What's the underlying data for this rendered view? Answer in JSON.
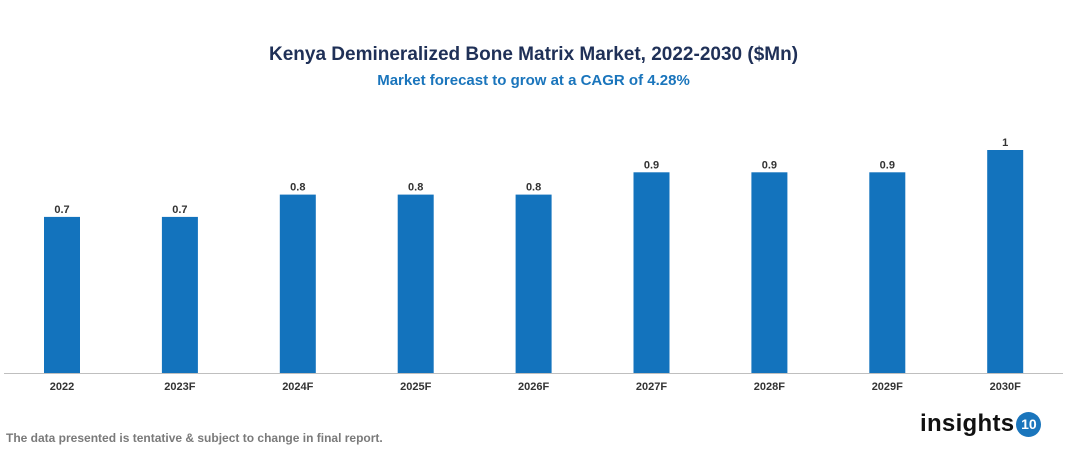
{
  "chart_data": {
    "type": "bar",
    "title": "Kenya Demineralized Bone Matrix Market, 2022-2030 ($Mn)",
    "subtitle": "Market forecast to grow at a CAGR of 4.28%",
    "categories": [
      "2022",
      "2023F",
      "2024F",
      "2025F",
      "2026F",
      "2027F",
      "2028F",
      "2029F",
      "2030F"
    ],
    "values": [
      0.7,
      0.7,
      0.8,
      0.8,
      0.8,
      0.9,
      0.9,
      0.9,
      1
    ],
    "ylim": [
      0,
      1
    ],
    "grid": false,
    "bar_color": "#1373bd"
  },
  "footer": {
    "disclaimer": "The data presented is tentative & subject to change in final report."
  },
  "logo": {
    "text": "insights",
    "badge": "10"
  }
}
